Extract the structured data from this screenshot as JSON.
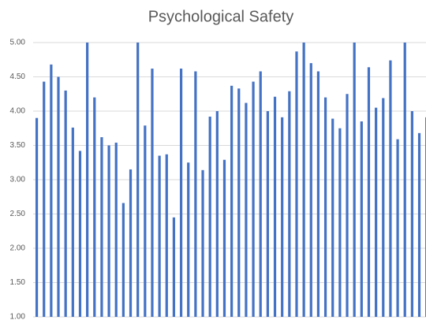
{
  "chart_data": {
    "type": "bar",
    "title": "Psychological Safety",
    "categories": [
      null,
      null,
      null,
      null,
      null,
      null,
      null,
      null,
      null,
      null,
      null,
      null,
      null,
      null,
      null,
      null,
      null,
      null,
      null,
      null,
      null,
      null,
      null,
      null,
      null,
      null,
      null,
      null,
      null,
      null,
      null,
      null,
      null,
      null,
      null,
      null,
      null,
      null,
      null,
      null,
      null,
      null,
      null,
      null,
      null,
      null,
      null,
      null,
      null,
      null,
      null,
      null,
      null,
      null,
      null
    ],
    "values": [
      3.9,
      4.43,
      4.68,
      4.5,
      4.3,
      3.76,
      3.42,
      5.0,
      4.2,
      3.62,
      3.5,
      3.54,
      2.66,
      3.15,
      5.0,
      3.79,
      4.62,
      3.35,
      3.37,
      2.45,
      4.62,
      3.25,
      4.58,
      3.14,
      3.92,
      4.0,
      3.29,
      4.37,
      4.33,
      4.12,
      4.43,
      4.58,
      4.0,
      4.21,
      3.91,
      4.29,
      4.87,
      5.0,
      4.7,
      4.58,
      4.2,
      3.89,
      3.75,
      4.25,
      5.0,
      3.85,
      4.64,
      4.05,
      4.19,
      4.74,
      3.59,
      5.0,
      4.0,
      3.68,
      3.91
    ],
    "color": "#4472c4",
    "ylim": [
      1,
      5
    ],
    "yticks": [
      {
        "value": 1,
        "label": "1.00"
      },
      {
        "value": 1.5,
        "label": "1.50"
      },
      {
        "value": 2,
        "label": "2.00"
      },
      {
        "value": 2.5,
        "label": "2.50"
      },
      {
        "value": 3,
        "label": "3.00"
      },
      {
        "value": 3.5,
        "label": "3.50"
      },
      {
        "value": 4,
        "label": "4.00"
      },
      {
        "value": 4.5,
        "label": "4.50"
      },
      {
        "value": 5,
        "label": "5.00"
      }
    ],
    "grid": true
  }
}
